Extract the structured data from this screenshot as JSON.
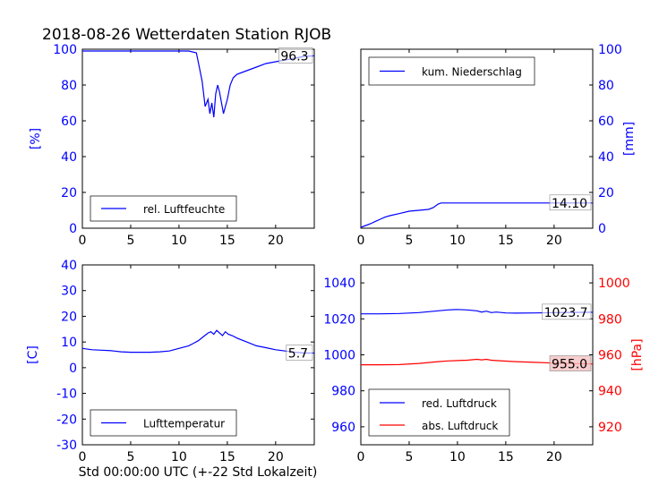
{
  "figure": {
    "title": "2018-08-26 Wetterdaten Station RJOB",
    "xlabel": "Std 00:00:00 UTC (+-22 Std Lokalzeit)"
  },
  "colors": {
    "blue": "#0000ff",
    "red": "#ff0000",
    "axis": "#000000"
  },
  "chart_data": [
    {
      "id": "humidity",
      "type": "line",
      "ylabel_left": "[%]",
      "xlim": [
        0,
        24
      ],
      "ylim": [
        0,
        100
      ],
      "xticks": [
        0,
        5,
        10,
        15,
        20
      ],
      "yticks": [
        0,
        20,
        40,
        60,
        80,
        100
      ],
      "legend": "lower-left",
      "series": [
        {
          "name": "rel. Luftfeuchte",
          "color": "#0000ff",
          "x": [
            0,
            1,
            2,
            3,
            4,
            5,
            6,
            7,
            8,
            9,
            10,
            11,
            11.8,
            12.1,
            12.4,
            12.7,
            13.0,
            13.2,
            13.4,
            13.6,
            13.8,
            14.0,
            14.2,
            14.4,
            14.6,
            14.8,
            15.0,
            15.3,
            15.6,
            16.0,
            16.5,
            17.0,
            17.5,
            18.0,
            19.0,
            20.0,
            21.0,
            22.0,
            23.0,
            24.0
          ],
          "y": [
            99,
            99,
            99,
            99,
            99,
            99,
            99,
            99,
            99,
            99,
            99,
            99,
            98,
            90,
            82,
            68,
            72,
            64,
            70,
            62,
            75,
            80,
            76,
            70,
            64,
            68,
            72,
            80,
            84,
            86,
            87,
            88,
            89,
            90,
            92,
            93,
            94,
            95,
            96,
            96.3
          ]
        }
      ],
      "annotations": [
        {
          "text": "96.3",
          "x": 23,
          "y": 96.3,
          "series": "rel. Luftfeuchte"
        }
      ]
    },
    {
      "id": "precipitation",
      "type": "line",
      "ylabel_right": "[mm]",
      "xlim": [
        0,
        24
      ],
      "ylim": [
        0,
        100
      ],
      "xticks": [
        0,
        5,
        10,
        15,
        20
      ],
      "yticks": [
        0,
        20,
        40,
        60,
        80,
        100
      ],
      "legend": "top-left",
      "series": [
        {
          "name": "kum. Niederschlag",
          "color": "#0000ff",
          "x": [
            0,
            0.5,
            1,
            1.5,
            2,
            2.5,
            3,
            4,
            5,
            6,
            7,
            7.5,
            8,
            8.3,
            9,
            10,
            12,
            14,
            16,
            18,
            20,
            22,
            24
          ],
          "y": [
            0.5,
            1.5,
            2.5,
            3.8,
            5,
            6.2,
            7,
            8.2,
            9.5,
            10,
            10.5,
            11.5,
            13.5,
            14.1,
            14.1,
            14.1,
            14.1,
            14.1,
            14.1,
            14.1,
            14.1,
            14.1,
            14.1
          ]
        }
      ],
      "annotations": [
        {
          "text": "14.10",
          "x": 22,
          "y": 14.1,
          "series": "kum. Niederschlag"
        }
      ]
    },
    {
      "id": "temperature",
      "type": "line",
      "ylabel_left": "[C]",
      "xlim": [
        0,
        24
      ],
      "ylim": [
        -30,
        40
      ],
      "xticks": [
        0,
        5,
        10,
        15,
        20
      ],
      "yticks": [
        -30,
        -20,
        -10,
        0,
        10,
        20,
        30,
        40
      ],
      "legend": "lower-left",
      "series": [
        {
          "name": "Lufttemperatur",
          "color": "#0000ff",
          "x": [
            0,
            1,
            2,
            3,
            4,
            5,
            6,
            7,
            8,
            9,
            10,
            11,
            11.5,
            12,
            12.5,
            13,
            13.3,
            13.6,
            13.9,
            14.2,
            14.5,
            14.8,
            15.1,
            15.5,
            16,
            17,
            18,
            19,
            20,
            21,
            22,
            23,
            24
          ],
          "y": [
            7.5,
            7,
            6.8,
            6.6,
            6.2,
            6,
            6,
            6,
            6.2,
            6.5,
            7.5,
            8.5,
            9.5,
            10.5,
            12,
            13.5,
            14,
            13,
            14.5,
            13.5,
            12.5,
            14,
            13,
            12.5,
            11.5,
            10,
            8.5,
            7.8,
            7,
            6.5,
            6,
            5.7,
            5.7
          ]
        }
      ],
      "annotations": [
        {
          "text": "5.7",
          "x": 22,
          "y": 5.7,
          "series": "Lufttemperatur"
        }
      ]
    },
    {
      "id": "pressure",
      "type": "line",
      "ylabel_right": "[hPa]",
      "xlim": [
        0,
        24
      ],
      "ylim_left": [
        950,
        1050
      ],
      "ylim_right": [
        910,
        1010
      ],
      "xticks": [
        0,
        5,
        10,
        15,
        20
      ],
      "yticks_left": [
        960,
        980,
        1000,
        1020,
        1040
      ],
      "yticks_right": [
        920,
        940,
        960,
        980,
        1000
      ],
      "legend": "lower-left",
      "series": [
        {
          "name": "red. Luftdruck",
          "axis": "left",
          "color": "#0000ff",
          "x": [
            0,
            2,
            4,
            6,
            8,
            9,
            10,
            11,
            12,
            12.5,
            13,
            13.5,
            14,
            15,
            16,
            18,
            20,
            22,
            24
          ],
          "y": [
            1022.8,
            1022.8,
            1023,
            1023.5,
            1024.5,
            1025,
            1025.2,
            1025,
            1024.5,
            1023.8,
            1024.3,
            1023.5,
            1023.8,
            1023.3,
            1023.2,
            1023.3,
            1023.5,
            1023.6,
            1023.7
          ]
        },
        {
          "name": "abs. Luftdruck",
          "axis": "right",
          "color": "#ff0000",
          "x": [
            0,
            2,
            4,
            6,
            8,
            9,
            10,
            11,
            12,
            12.5,
            13,
            13.5,
            14,
            15,
            16,
            18,
            20,
            22,
            24
          ],
          "y": [
            954.5,
            954.5,
            954.6,
            955.2,
            956.2,
            956.6,
            956.8,
            957,
            957.5,
            957.2,
            957.5,
            957,
            956.8,
            956.5,
            956.2,
            955.8,
            955.4,
            955.1,
            955.0
          ]
        }
      ],
      "annotations": [
        {
          "text": "1023.7",
          "x": 22,
          "y": 1023.7,
          "series": "red. Luftdruck"
        },
        {
          "text": "955.0",
          "x": 22,
          "y": 955.0,
          "series": "abs. Luftdruck"
        }
      ]
    }
  ]
}
